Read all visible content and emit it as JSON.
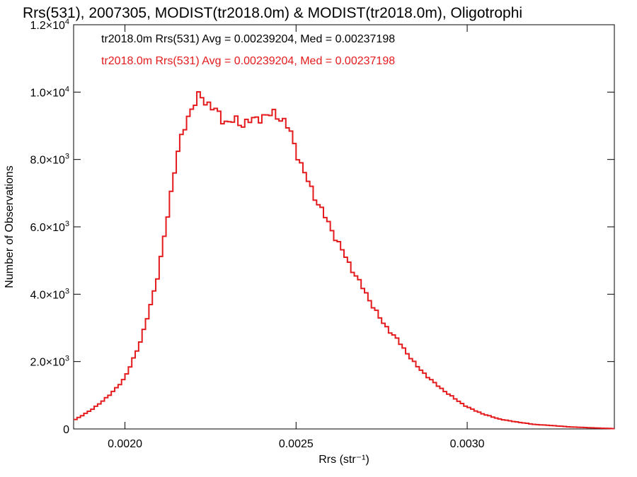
{
  "chart_data": {
    "type": "line",
    "title": "Rrs(531), 2007305, MODIST(tr2018.0m) & MODIST(tr2018.0m), Oligotrophi",
    "xlabel": "Rrs (str⁻¹)",
    "ylabel": "Number of Observations",
    "xlim": [
      0.00185,
      0.00343
    ],
    "ylim": [
      0,
      12000
    ],
    "x_ticks": [
      {
        "value": 0.002,
        "label": "0.0020"
      },
      {
        "value": 0.0025,
        "label": "0.0025"
      },
      {
        "value": 0.003,
        "label": "0.0030"
      }
    ],
    "y_ticks": [
      {
        "value": 0,
        "mant": "0",
        "exp": ""
      },
      {
        "value": 2000,
        "mant": "2.0×10",
        "exp": "3"
      },
      {
        "value": 4000,
        "mant": "4.0×10",
        "exp": "3"
      },
      {
        "value": 6000,
        "mant": "6.0×10",
        "exp": "3"
      },
      {
        "value": 8000,
        "mant": "8.0×10",
        "exp": "3"
      },
      {
        "value": 10000,
        "mant": "1.0×10",
        "exp": "4"
      },
      {
        "value": 12000,
        "mant": "1.2×10",
        "exp": "4"
      }
    ],
    "grid": false,
    "legend_position": "top-left",
    "series": [
      {
        "text": "tr2018.0m Rrs(531) Avg = 0.00239204, Med = 0.00237198",
        "color": "#000000"
      },
      {
        "text": "tr2018.0m Rrs(531) Avg = 0.00239204, Med = 0.00237198",
        "color": "#e41a1c"
      }
    ],
    "histogram": {
      "color": "#e41a1c",
      "bin_width": 1e-05,
      "x": [
        0.00185,
        0.0019,
        0.00195,
        0.002,
        0.00205,
        0.0021,
        0.00213,
        0.00215,
        0.00218,
        0.0022,
        0.00222,
        0.00224,
        0.00226,
        0.00228,
        0.0023,
        0.00232,
        0.00234,
        0.00236,
        0.00238,
        0.0024,
        0.00242,
        0.00244,
        0.00246,
        0.00248,
        0.0025,
        0.00252,
        0.00255,
        0.00258,
        0.0026,
        0.00265,
        0.0027,
        0.00275,
        0.0028,
        0.00285,
        0.0029,
        0.00295,
        0.003,
        0.00305,
        0.0031,
        0.00315,
        0.0032,
        0.00325,
        0.0033,
        0.00335,
        0.0034,
        0.00343
      ],
      "counts": [
        250,
        550,
        950,
        1500,
        2700,
        4700,
        6700,
        8000,
        9200,
        9600,
        9900,
        9700,
        9500,
        9250,
        9100,
        9150,
        9050,
        9150,
        9150,
        9300,
        9300,
        9350,
        9200,
        8900,
        8300,
        7700,
        7000,
        6400,
        6000,
        5000,
        4100,
        3200,
        2600,
        1900,
        1400,
        1000,
        650,
        430,
        280,
        200,
        130,
        100,
        60,
        40,
        20,
        10
      ]
    }
  }
}
